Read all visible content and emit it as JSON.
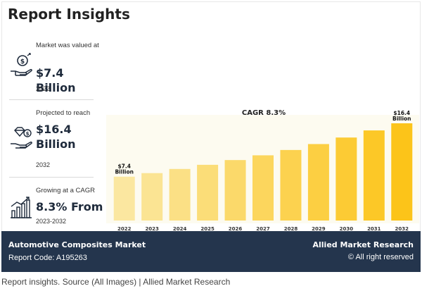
{
  "title": "Report Insights",
  "stats": [
    {
      "label": "Market was valued at",
      "value": "$7.4 Billion",
      "sub": "2022",
      "icon": "money-hand-icon"
    },
    {
      "label": "Projected to reach",
      "value": "$16.4 Billion",
      "sub": "2032",
      "icon": "diamond-hand-icon"
    },
    {
      "label": "Growing at a CAGR",
      "value": "8.3% From",
      "sub": "2023-2032",
      "icon": "growth-bars-icon"
    }
  ],
  "chart_data": {
    "type": "bar",
    "title": "CAGR 8.3%",
    "categories": [
      "2022",
      "2023",
      "2024",
      "2025",
      "2026",
      "2027",
      "2028",
      "2029",
      "2030",
      "2031",
      "2032"
    ],
    "values": [
      7.4,
      8.0,
      8.7,
      9.4,
      10.2,
      11.0,
      11.9,
      12.9,
      14.0,
      15.2,
      16.4
    ],
    "ylim": [
      0,
      16.4
    ],
    "data_labels": [
      {
        "index": 0,
        "line1": "$7.4",
        "line2": "Billion"
      },
      {
        "index": 10,
        "line1": "$16.4",
        "line2": "Billion"
      }
    ],
    "colors": {
      "start": "#fbe7a0",
      "end": "#fcc419"
    }
  },
  "footer": {
    "market": "Automotive Composites Market",
    "code": "Report Code: A195263",
    "brand": "Allied Market Research",
    "rights": "© All right reserved"
  },
  "caption": "Report insights. Source (All Images) | Allied Market Research"
}
